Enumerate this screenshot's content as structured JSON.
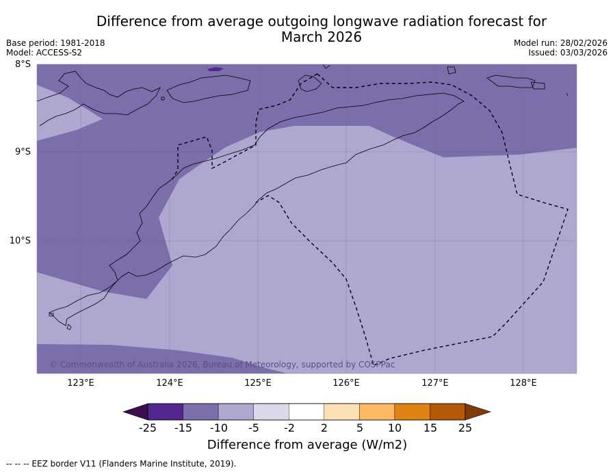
{
  "title_line1": "Difference from average outgoing longwave radiation forecast for",
  "title_line2": "March 2026",
  "base_period": "Base period: 1981-2018",
  "model": "Model: ACCESS-S2",
  "model_run": "Model run: 28/02/2026",
  "issued": "Issued: 03/03/2026",
  "lat_labels": [
    "8°S",
    "9°S",
    "10°S"
  ],
  "lon_labels": [
    "123°E",
    "124°E",
    "125°E",
    "126°E",
    "127°E",
    "128°E"
  ],
  "copyright": "© Commonwealth of Australia 2026, Bureau of Meteorology, supported by COSPPac",
  "colorbar": {
    "label": "Difference from average (W/m2)",
    "ticks": [
      "-25",
      "-15",
      "-10",
      "-5",
      "-2",
      "2",
      "5",
      "10",
      "15",
      "25"
    ],
    "colors": {
      "below_-25": "#3b0f4f",
      "-25_-15": "#54278f",
      "-15_-10": "#7b6eab",
      "-10_-5": "#aea8d1",
      "-5_-2": "#dadaeb",
      "-2_2": "#ffffff",
      "2_5": "#fee0b6",
      "5_10": "#fdb863",
      "10_15": "#e08214",
      "15_25": "#b35806",
      "above_25": "#7f3b08"
    }
  },
  "footnote": "-- -- -- EEZ border V11 (Flanders Marine Institute, 2019)."
}
